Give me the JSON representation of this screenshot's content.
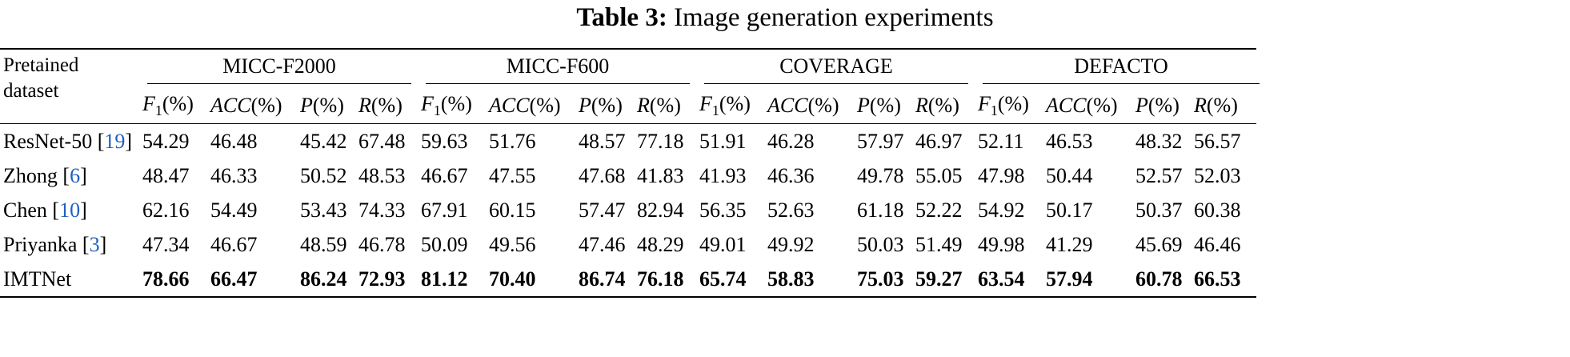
{
  "title": {
    "label": "Table 3:",
    "text": "Image generation experiments"
  },
  "header": {
    "row_label": [
      "Pretained",
      "dataset"
    ],
    "groups": [
      "MICC-F2000",
      "MICC-F600",
      "COVERAGE",
      "DEFACTO"
    ],
    "metrics": [
      {
        "name": "F",
        "sub": "1",
        "unit": "(%)"
      },
      {
        "name": "ACC",
        "sub": "",
        "unit": "(%)"
      },
      {
        "name": "P",
        "sub": "",
        "unit": "(%)"
      },
      {
        "name": "R",
        "sub": "",
        "unit": "(%)"
      }
    ]
  },
  "rows": [
    {
      "method": "ResNet-50",
      "cite": "19",
      "bold": false,
      "values": [
        "54.29",
        "46.48",
        "45.42",
        "67.48",
        "59.63",
        "51.76",
        "48.57",
        "77.18",
        "51.91",
        "46.28",
        "57.97",
        "46.97",
        "52.11",
        "46.53",
        "48.32",
        "56.57"
      ]
    },
    {
      "method": "Zhong",
      "cite": "6",
      "bold": false,
      "values": [
        "48.47",
        "46.33",
        "50.52",
        "48.53",
        "46.67",
        "47.55",
        "47.68",
        "41.83",
        "41.93",
        "46.36",
        "49.78",
        "55.05",
        "47.98",
        "50.44",
        "52.57",
        "52.03"
      ]
    },
    {
      "method": "Chen",
      "cite": "10",
      "bold": false,
      "values": [
        "62.16",
        "54.49",
        "53.43",
        "74.33",
        "67.91",
        "60.15",
        "57.47",
        "82.94",
        "56.35",
        "52.63",
        "61.18",
        "52.22",
        "54.92",
        "50.17",
        "50.37",
        "60.38"
      ]
    },
    {
      "method": "Priyanka",
      "cite": "3",
      "bold": false,
      "values": [
        "47.34",
        "46.67",
        "48.59",
        "46.78",
        "50.09",
        "49.56",
        "47.46",
        "48.29",
        "49.01",
        "49.92",
        "50.03",
        "51.49",
        "49.98",
        "41.29",
        "45.69",
        "46.46"
      ]
    },
    {
      "method": "IMTNet",
      "cite": "",
      "bold": true,
      "values": [
        "78.66",
        "66.47",
        "86.24",
        "72.93",
        "81.12",
        "70.40",
        "86.74",
        "76.18",
        "65.74",
        "58.83",
        "75.03",
        "59.27",
        "63.54",
        "57.94",
        "60.78",
        "66.53"
      ]
    }
  ]
}
